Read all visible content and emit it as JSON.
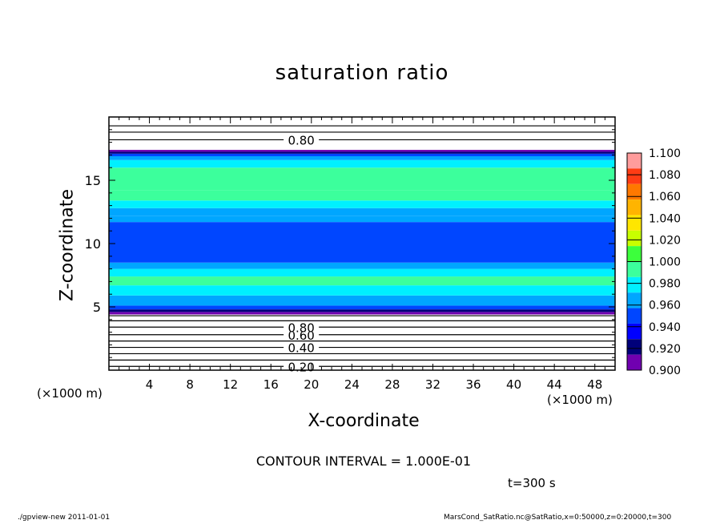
{
  "chart_data": {
    "type": "heatmap",
    "title": "saturation ratio",
    "xlabel": "X-coordinate",
    "ylabel": "Z-coordinate",
    "x_unit_left": "(×1000 m)",
    "x_unit_right": "(×1000 m)",
    "xlim": [
      0,
      50
    ],
    "ylim": [
      0,
      20
    ],
    "x_ticks": [
      "4",
      "8",
      "12",
      "16",
      "20",
      "24",
      "28",
      "32",
      "36",
      "40",
      "44",
      "48"
    ],
    "y_ticks": [
      "5",
      "10",
      "15"
    ],
    "colorbar": {
      "levels": [
        "1.100",
        "1.080",
        "1.060",
        "1.040",
        "1.020",
        "1.000",
        "0.980",
        "0.960",
        "0.940",
        "0.920",
        "0.900"
      ],
      "colors": [
        "#ff9c9c",
        "#ff3c14",
        "#ff7800",
        "#ffb400",
        "#ffe600",
        "#c8ff00",
        "#3cff3c",
        "#3cff9c",
        "#00f0ff",
        "#00a6ff",
        "#0046ff",
        "#0000ff",
        "#00007a",
        "#7000b0"
      ]
    },
    "bands_z_to_value": [
      {
        "z0": 4.4,
        "z1": 4.6,
        "v": 0.9
      },
      {
        "z0": 4.6,
        "z1": 4.8,
        "v": 0.92
      },
      {
        "z0": 4.8,
        "z1": 5.1,
        "v": 0.94
      },
      {
        "z0": 5.1,
        "z1": 5.9,
        "v": 0.96
      },
      {
        "z0": 5.9,
        "z1": 6.7,
        "v": 0.975
      },
      {
        "z0": 6.7,
        "z1": 7.4,
        "v": 0.985
      },
      {
        "z0": 7.4,
        "z1": 8.0,
        "v": 0.97
      },
      {
        "z0": 8.0,
        "z1": 8.5,
        "v": 0.96
      },
      {
        "z0": 8.5,
        "z1": 11.7,
        "v": 0.95
      },
      {
        "z0": 11.7,
        "z1": 12.2,
        "v": 0.96
      },
      {
        "z0": 12.2,
        "z1": 12.8,
        "v": 0.965
      },
      {
        "z0": 12.8,
        "z1": 13.4,
        "v": 0.975
      },
      {
        "z0": 13.4,
        "z1": 14.2,
        "v": 0.985
      },
      {
        "z0": 14.2,
        "z1": 16.0,
        "v": 0.995
      },
      {
        "z0": 16.0,
        "z1": 16.6,
        "v": 0.98
      },
      {
        "z0": 16.6,
        "z1": 16.9,
        "v": 0.96
      },
      {
        "z0": 16.9,
        "z1": 17.1,
        "v": 0.94
      },
      {
        "z0": 17.1,
        "z1": 17.25,
        "v": 0.92
      },
      {
        "z0": 17.25,
        "z1": 17.4,
        "v": 0.9
      }
    ],
    "contour_lines_z": [
      0.3,
      0.8,
      1.3,
      1.8,
      2.3,
      2.8,
      3.4,
      3.9,
      4.3,
      18.2,
      18.8,
      19.3
    ],
    "contour_labels": [
      {
        "z": 0.3,
        "label": "0.20"
      },
      {
        "z": 1.8,
        "label": "0.40"
      },
      {
        "z": 2.8,
        "label": "0.60"
      },
      {
        "z": 3.4,
        "label": "0.80"
      },
      {
        "z": 18.2,
        "label": "0.80"
      }
    ]
  },
  "contour_note": "CONTOUR INTERVAL = 1.000E-01",
  "time_label": "t=300 s",
  "footer_left": "./gpview-new   2011-01-01",
  "footer_right": "MarsCond_SatRatio.nc@SatRatio,x=0:50000,z=0:20000,t=300"
}
